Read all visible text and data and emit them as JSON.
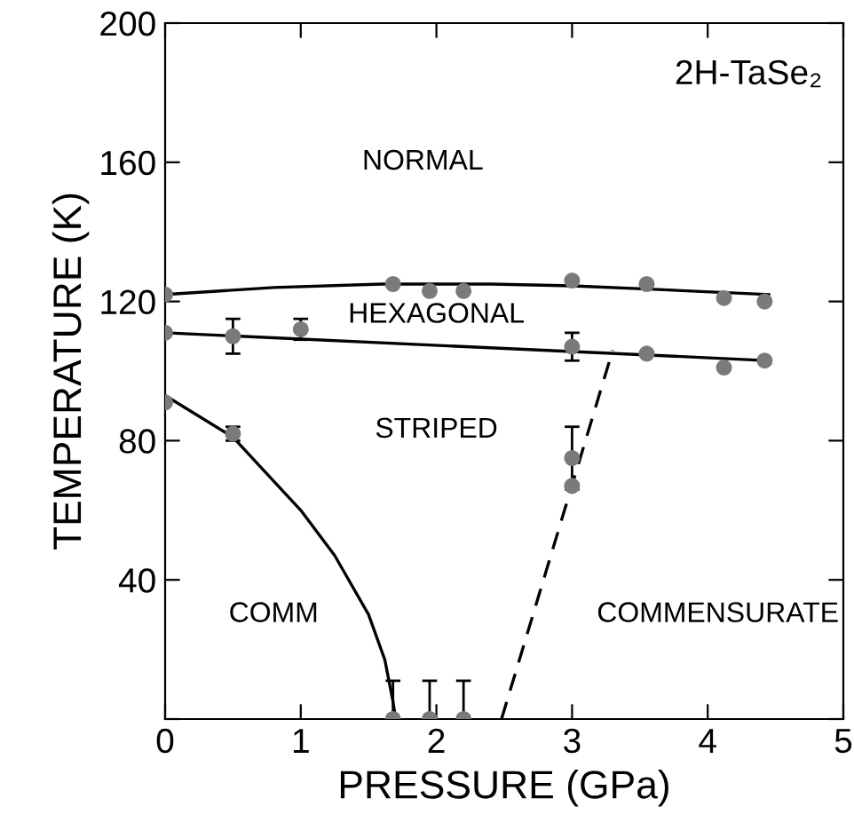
{
  "chart_data": {
    "type": "scatter",
    "xlabel": "PRESSURE (GPa)",
    "ylabel": "TEMPERATURE (K)",
    "xlim": [
      0,
      5
    ],
    "ylim": [
      0,
      200
    ],
    "xticks": [
      0,
      1,
      2,
      3,
      4,
      5
    ],
    "yticks": [
      {
        "value": 0,
        "label": null
      },
      40,
      80,
      120,
      160,
      200
    ],
    "grid": false,
    "marker": "circle",
    "series": [
      {
        "color": "#7a7a7a",
        "x": [
          0,
          1.68,
          1.95,
          2.2,
          3.0,
          3.55,
          4.12,
          4.42
        ],
        "values": [
          122,
          125,
          123,
          123,
          126,
          125,
          121,
          120
        ]
      },
      {
        "color": "#7a7a7a",
        "x": [
          0,
          0.5,
          1.0,
          3.0,
          3.55,
          4.12,
          4.42
        ],
        "values": [
          111,
          110,
          112,
          107,
          105,
          101,
          103
        ],
        "errors": [
          null,
          5,
          3,
          4,
          null,
          null,
          null
        ]
      },
      {
        "color": "#7a7a7a",
        "x": [
          0,
          0.5,
          1.68,
          1.95,
          2.2,
          3.0,
          3.0
        ],
        "values": [
          91,
          82,
          0,
          0,
          0,
          75,
          67
        ],
        "errors": [
          null,
          2,
          [
            0,
            11
          ],
          [
            0,
            11
          ],
          [
            0,
            11
          ],
          9,
          null
        ]
      },
      {
        "type": "line",
        "color": "#000000",
        "line_style": "solid",
        "marker": "none",
        "x": [
          0,
          0.8,
          1.6,
          2.4,
          3.0,
          3.6,
          4.45
        ],
        "values": [
          122,
          124,
          125,
          125,
          124.5,
          123.5,
          122
        ]
      },
      {
        "type": "line",
        "color": "#000000",
        "line_style": "solid",
        "marker": "none",
        "x": [
          0,
          4.45
        ],
        "values": [
          111,
          103
        ]
      },
      {
        "type": "line",
        "color": "#000000",
        "line_style": "solid",
        "marker": "none",
        "x": [
          0,
          0.5,
          1.0,
          1.25,
          1.5,
          1.62,
          1.68,
          1.7
        ],
        "values": [
          93,
          81,
          60,
          47,
          30,
          17,
          5,
          0
        ]
      },
      {
        "type": "line",
        "color": "#000000",
        "line_style": "dashed",
        "marker": "none",
        "x": [
          2.48,
          3.3
        ],
        "values": [
          0,
          106
        ]
      }
    ],
    "annotations": [
      "2H-TaSe₂",
      "NORMAL",
      "HEXAGONAL",
      "STRIPED",
      "COMM",
      "COMMENSURATE"
    ]
  }
}
